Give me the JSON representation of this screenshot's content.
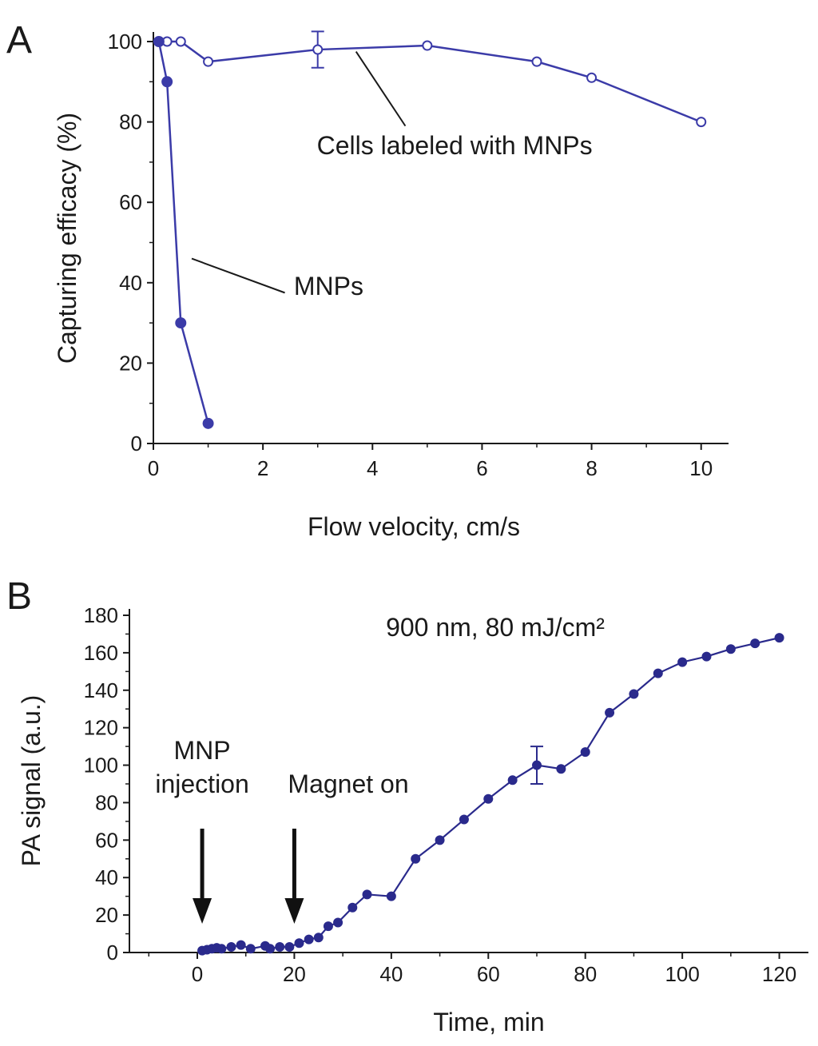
{
  "chart_data": [
    {
      "panel": "A",
      "type": "line",
      "xlabel": "Flow velocity, cm/s",
      "ylabel": "Capturing efficacy (%)",
      "xlim": [
        0,
        10.5
      ],
      "ylim": [
        0,
        100
      ],
      "xticks": [
        0,
        2,
        4,
        6,
        8,
        10
      ],
      "yticks": [
        0,
        20,
        40,
        60,
        80,
        100
      ],
      "series_color": "#3b3ba8",
      "series": [
        {
          "name": "Cells labeled with MNPs",
          "marker": "open-circle",
          "x": [
            0.1,
            0.25,
            0.5,
            1,
            3,
            5,
            7,
            8,
            10
          ],
          "y": [
            100,
            100,
            100,
            95,
            98,
            99,
            95,
            91,
            80
          ],
          "error": [
            null,
            null,
            null,
            null,
            4.5,
            null,
            null,
            null,
            null
          ]
        },
        {
          "name": "MNPs",
          "marker": "filled-circle",
          "x": [
            0.1,
            0.25,
            0.5,
            1
          ],
          "y": [
            100,
            90,
            30,
            5
          ]
        }
      ],
      "annotations": [
        {
          "text": "Cells labeled with MNPs",
          "points_to": [
            3.7,
            97.5
          ],
          "text_at": [
            5.5,
            72
          ]
        },
        {
          "text": "MNPs",
          "points_to": [
            0.7,
            46
          ],
          "text_at": [
            3.2,
            37
          ]
        }
      ]
    },
    {
      "panel": "B",
      "type": "line",
      "xlabel": "Time, min",
      "ylabel": "PA signal (a.u.)",
      "title": "900 nm, 80 mJ/cm²",
      "xlim": [
        -14,
        126
      ],
      "ylim": [
        0,
        180
      ],
      "xticks": [
        0,
        20,
        40,
        60,
        80,
        100,
        120
      ],
      "yticks": [
        0,
        20,
        40,
        60,
        80,
        100,
        120,
        140,
        160,
        180
      ],
      "series_color": "#2a2a8c",
      "series": [
        {
          "marker": "filled-circle",
          "x": [
            1,
            2,
            3,
            4,
            5,
            7,
            9,
            11,
            14,
            15,
            17,
            19,
            21,
            23,
            25,
            27,
            29,
            32,
            35,
            40,
            45,
            50,
            55,
            60,
            65,
            70,
            75,
            80,
            85,
            90,
            95,
            100,
            105,
            110,
            115,
            120
          ],
          "y": [
            1,
            1.5,
            2,
            2.5,
            2,
            3,
            4,
            2,
            3.5,
            2,
            3,
            3,
            5,
            7,
            8,
            14,
            16,
            24,
            31,
            30,
            50,
            60,
            71,
            82,
            92,
            100,
            98,
            107,
            128,
            138,
            149,
            155,
            158,
            162,
            165,
            168
          ],
          "error_at": {
            "x": 70,
            "y": 100,
            "err": 10
          }
        }
      ],
      "annotations": [
        {
          "text_lines": [
            "MNP",
            "injection"
          ],
          "arrow_x": 1
        },
        {
          "text_lines": [
            "Magnet on"
          ],
          "arrow_x": 20
        }
      ]
    }
  ]
}
